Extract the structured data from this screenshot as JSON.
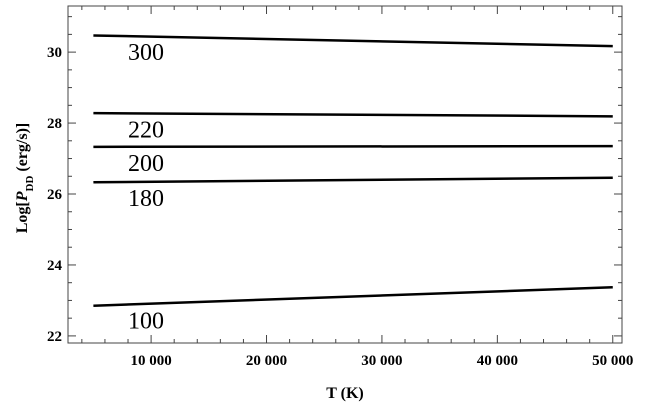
{
  "chart_data": {
    "type": "line",
    "title": "",
    "xlabel": "T (K)",
    "ylabel_prefix": "Log[",
    "ylabel_var": "P",
    "ylabel_sub": "DD",
    "ylabel_suffix": " (erg/s)]",
    "xlim": [
      2800,
      50800
    ],
    "ylim": [
      21.8,
      31.3
    ],
    "x_ticks": [
      10000,
      20000,
      30000,
      40000,
      50000
    ],
    "x_tick_labels": [
      "10 000",
      "20 000",
      "30 000",
      "40 000",
      "50 000"
    ],
    "y_ticks": [
      22,
      24,
      26,
      28,
      30
    ],
    "y_tick_labels": [
      "22",
      "24",
      "26",
      "28",
      "30"
    ],
    "grid": false,
    "series": [
      {
        "name": "300",
        "x": [
          5000,
          50000
        ],
        "y": [
          30.47,
          30.17
        ]
      },
      {
        "name": "220",
        "x": [
          5000,
          50000
        ],
        "y": [
          28.28,
          28.19
        ]
      },
      {
        "name": "200",
        "x": [
          5000,
          50000
        ],
        "y": [
          27.33,
          27.35
        ]
      },
      {
        "name": "180",
        "x": [
          5000,
          50000
        ],
        "y": [
          26.33,
          26.46
        ]
      },
      {
        "name": "100",
        "x": [
          5000,
          50000
        ],
        "y": [
          22.85,
          23.37
        ]
      }
    ]
  }
}
